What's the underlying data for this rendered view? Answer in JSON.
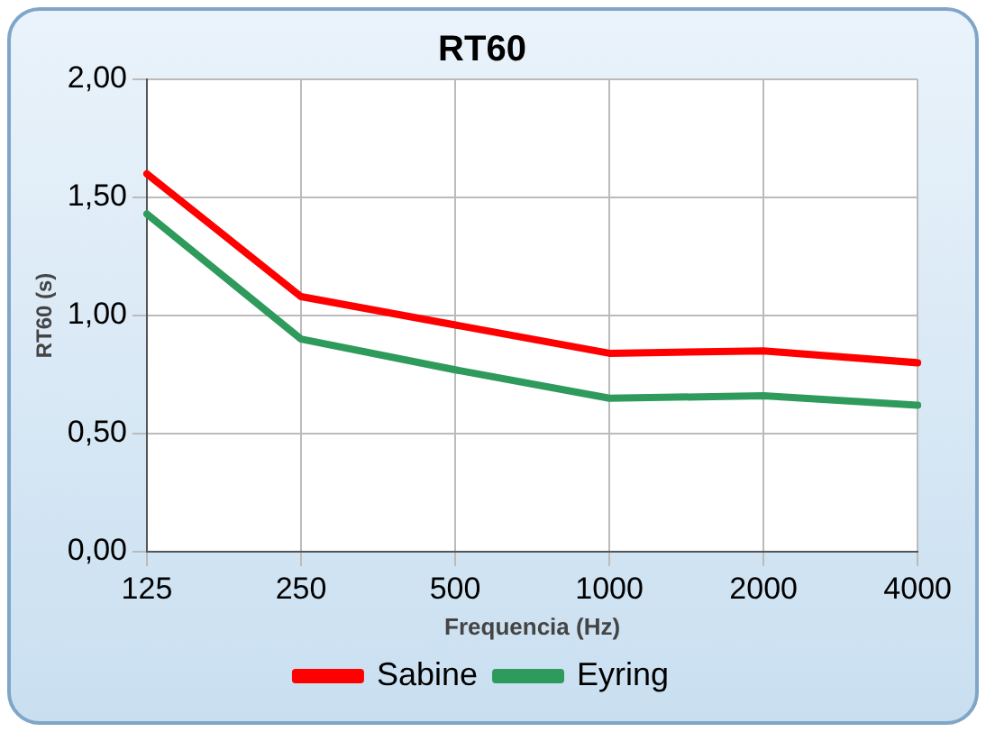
{
  "chart_data": {
    "type": "line",
    "title": "RT60",
    "xlabel": "Frequencia (Hz)",
    "ylabel": "RT60 (s)",
    "categories": [
      "125",
      "250",
      "500",
      "1000",
      "2000",
      "4000"
    ],
    "series": [
      {
        "name": "Sabine",
        "color": "#ff0000",
        "values": [
          1.6,
          1.08,
          0.96,
          0.84,
          0.85,
          0.8
        ]
      },
      {
        "name": "Eyring",
        "color": "#2e9a5c",
        "values": [
          1.43,
          0.9,
          0.77,
          0.65,
          0.66,
          0.62
        ]
      }
    ],
    "ylim": [
      0,
      2
    ],
    "yticks": [
      {
        "value": 0,
        "label": "0,00"
      },
      {
        "value": 0.5,
        "label": "0,50"
      },
      {
        "value": 1,
        "label": "1,00"
      },
      {
        "value": 1.5,
        "label": "1,50"
      },
      {
        "value": 2,
        "label": "2,00"
      }
    ],
    "grid": true,
    "legend": "bottom",
    "marker": "none",
    "line_style": "solid"
  }
}
